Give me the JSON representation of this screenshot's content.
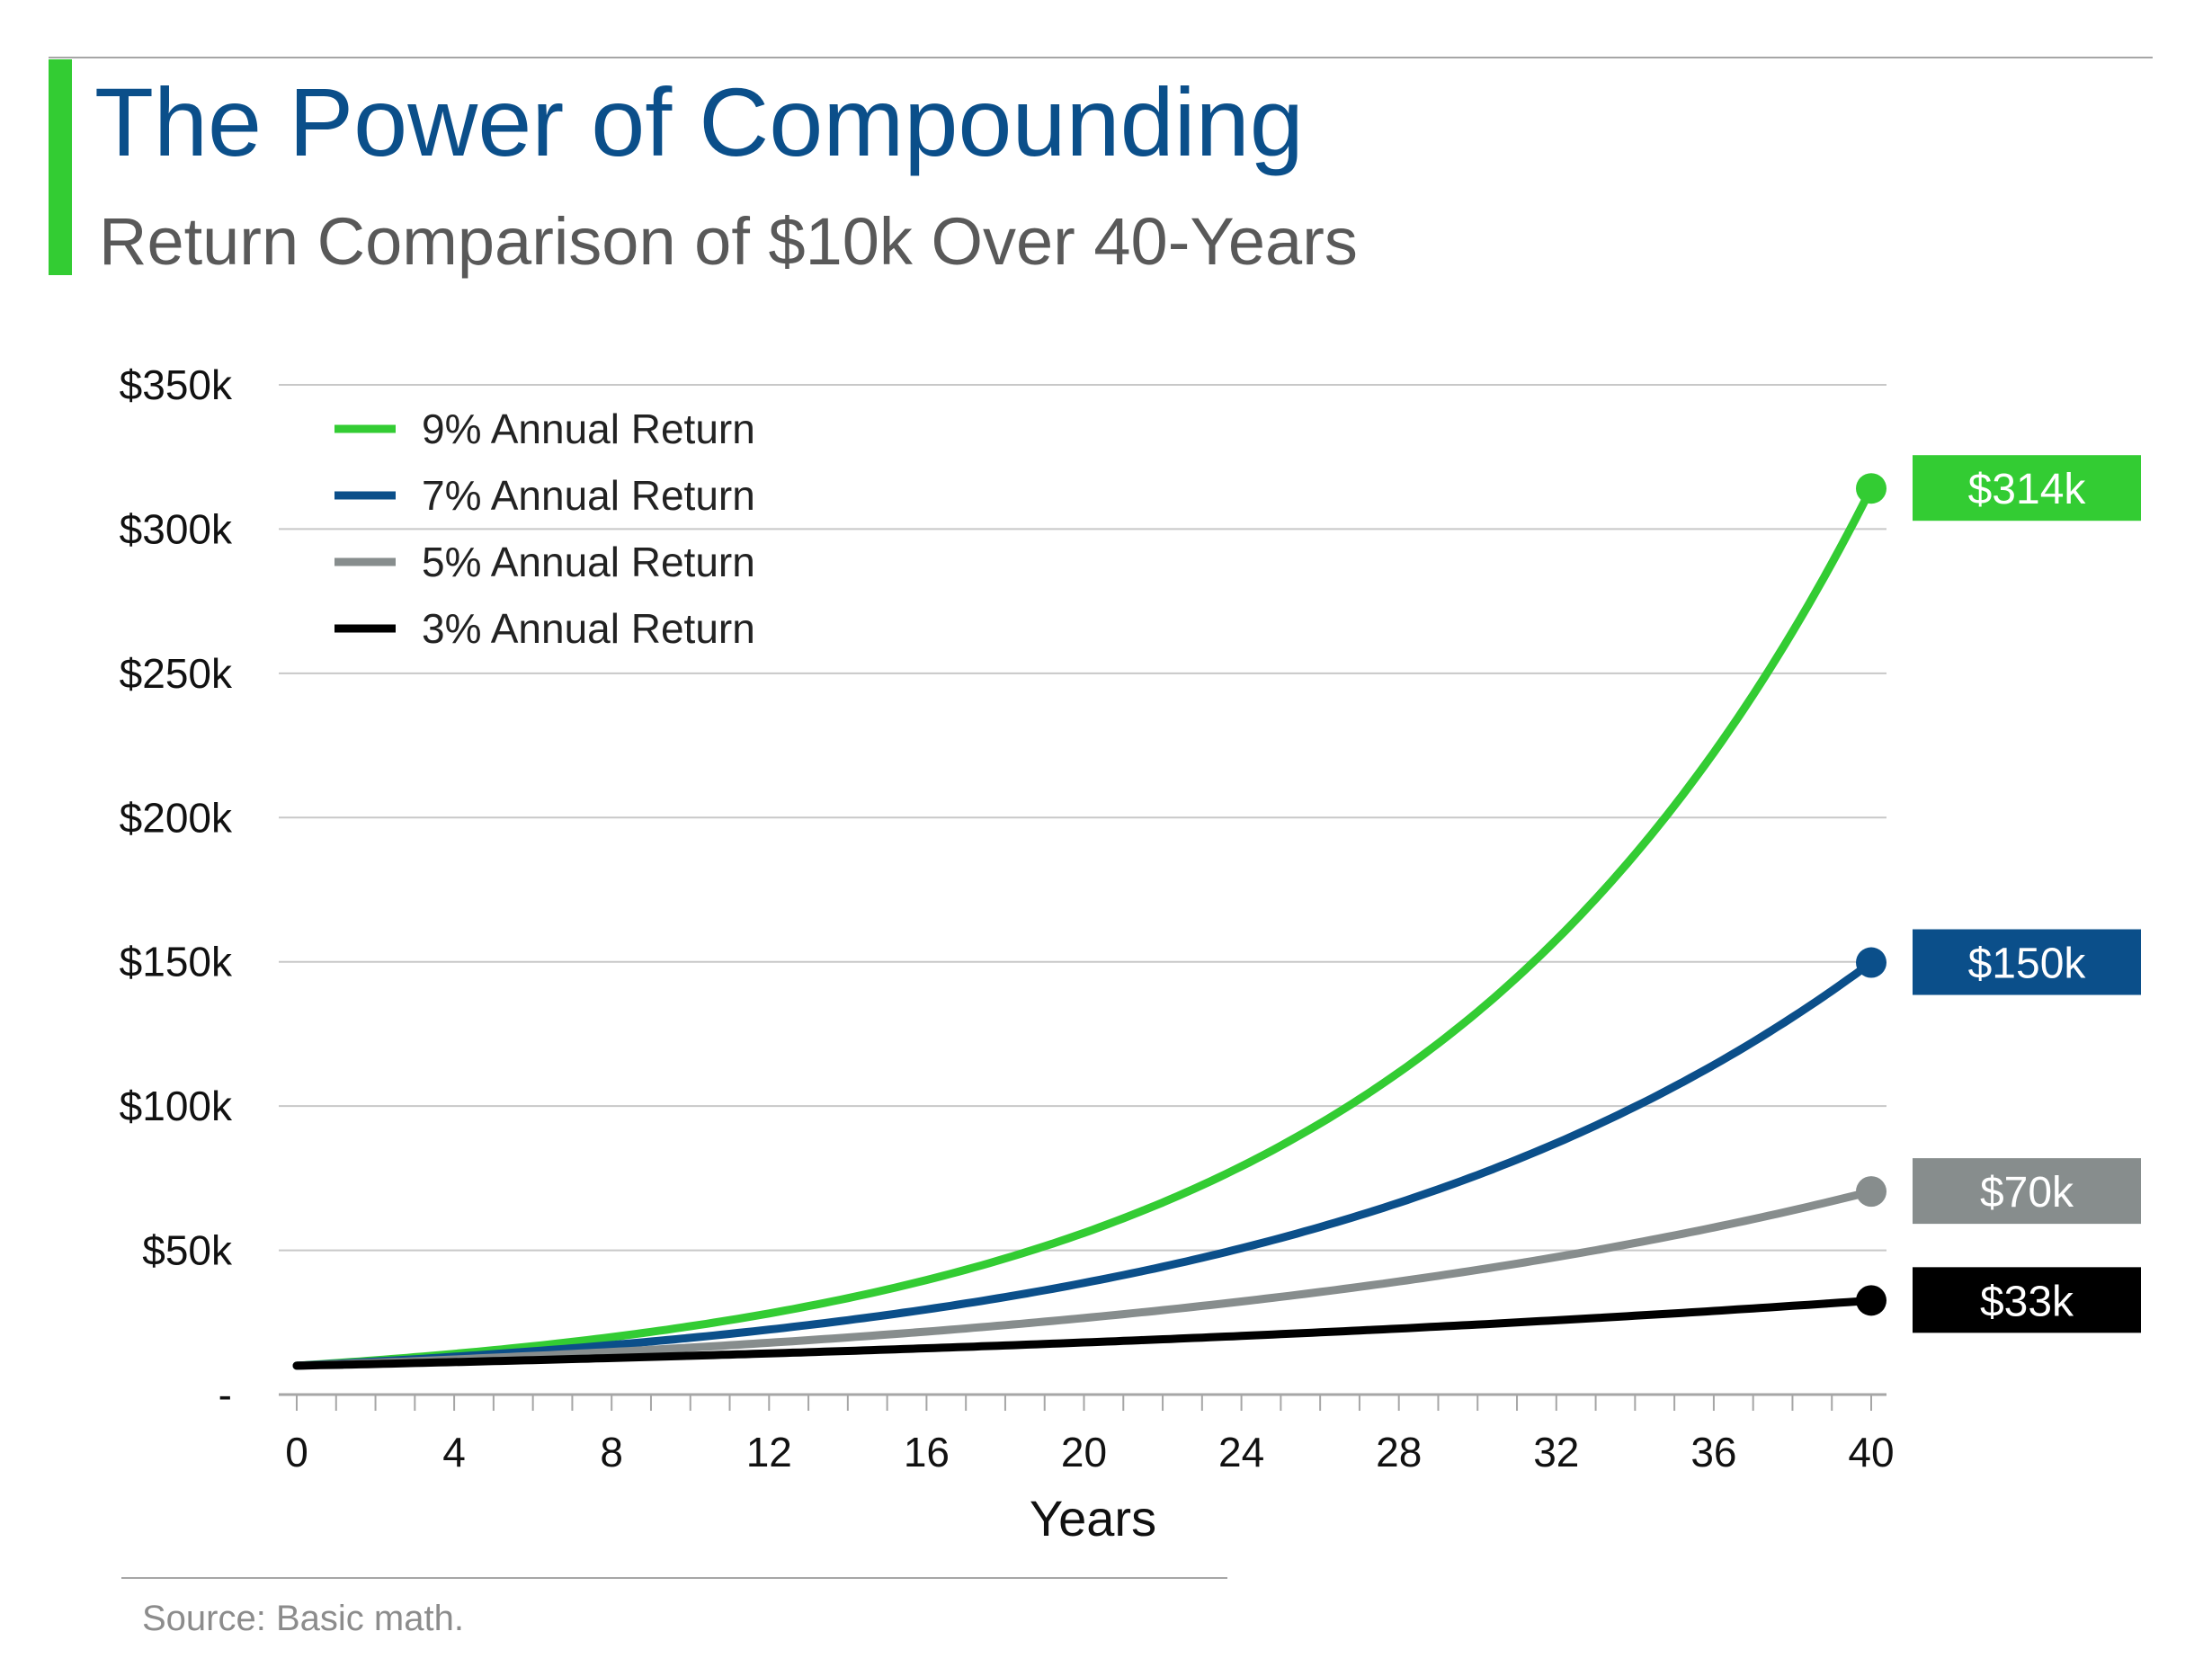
{
  "header": {
    "title": "The Power of Compounding",
    "subtitle": "Return Comparison of $10k Over 40-Years"
  },
  "footer": {
    "source": "Source: Basic math."
  },
  "colors": {
    "accent": "#33cc33",
    "title": "#0b4f8a",
    "grid": "#c8c8c8"
  },
  "chart_data": {
    "type": "line",
    "title": "The Power of Compounding",
    "subtitle": "Return Comparison of $10k Over 40-Years",
    "xlabel": "Years",
    "ylabel": "",
    "xlim": [
      0,
      40
    ],
    "ylim": [
      0,
      350000
    ],
    "x_ticks": [
      0,
      4,
      8,
      12,
      16,
      20,
      24,
      28,
      32,
      36,
      40
    ],
    "y_ticks": [
      0,
      50000,
      100000,
      150000,
      200000,
      250000,
      300000,
      350000
    ],
    "y_tick_labels": [
      "-",
      "$50k",
      "$100k",
      "$150k",
      "$200k",
      "$250k",
      "$300k",
      "$350k"
    ],
    "grid": "horizontal",
    "legend_position": "top-left",
    "principal": 10000,
    "x": [
      0,
      4,
      8,
      12,
      16,
      20,
      24,
      28,
      32,
      36,
      40
    ],
    "series": [
      {
        "name": "9% Annual Return",
        "color": "#33cc33",
        "rate": 0.09,
        "end_label": "$314k",
        "values": [
          10000,
          14116,
          19926,
          28127,
          39703,
          56044,
          79111,
          111671,
          157633,
          222512,
          314094
        ]
      },
      {
        "name": "7% Annual Return",
        "color": "#0b4f8a",
        "rate": 0.07,
        "end_label": "$150k",
        "values": [
          10000,
          13108,
          17182,
          22522,
          29522,
          38697,
          50724,
          66488,
          87153,
          114239,
          149745
        ]
      },
      {
        "name": "5% Annual Return",
        "color": "#878d8d",
        "rate": 0.05,
        "end_label": "$70k",
        "values": [
          10000,
          12155,
          14775,
          17959,
          21829,
          26533,
          32251,
          39201,
          47649,
          57918,
          70400
        ]
      },
      {
        "name": "3% Annual Return",
        "color": "#000000",
        "rate": 0.03,
        "end_label": "$33k",
        "values": [
          10000,
          11255,
          12668,
          14258,
          16047,
          18061,
          20328,
          22879,
          25751,
          28983,
          32620
        ]
      }
    ]
  }
}
